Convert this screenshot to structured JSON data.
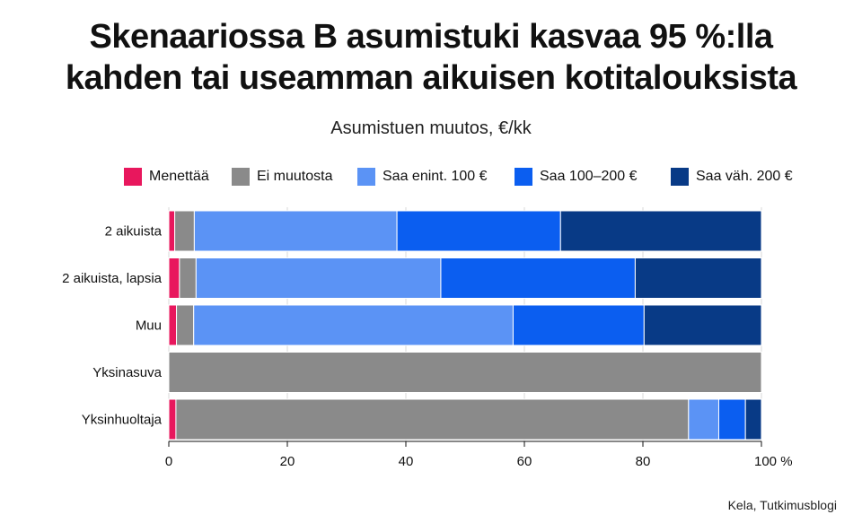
{
  "title_line1": "Skenaariossa B asumistuki kasvaa 95 %:lla",
  "title_line2": "kahden tai useamman aikuisen kotitalouksista",
  "source": "Kela, Tutkimusblogi",
  "chart_data": {
    "type": "bar",
    "orientation": "horizontal",
    "stacked": true,
    "title": "Skenaariossa B asumistuki kasvaa 95 %:lla kahden tai useamman aikuisen kotitalouksista",
    "subtitle": "Asumistuen muutos, €/kk",
    "xlabel": "",
    "ylabel": "",
    "xlim": [
      0,
      100
    ],
    "x_ticks": [
      "0",
      "20",
      "40",
      "60",
      "80",
      "100 %"
    ],
    "categories": [
      "2 aikuista",
      "2 aikuista, lapsia",
      "Muu",
      "Yksinasuva",
      "Yksinhuoltaja"
    ],
    "series": [
      {
        "name": "Menettää",
        "color": "#e8175d",
        "values": [
          1.0,
          1.8,
          1.3,
          0.0,
          1.2
        ]
      },
      {
        "name": "Ei muutosta",
        "color": "#8a8a8a",
        "values": [
          3.3,
          2.8,
          2.9,
          100.0,
          86.5
        ]
      },
      {
        "name": "Saa enint. 100 €",
        "color": "#5b93f5",
        "values": [
          34.2,
          41.3,
          53.9,
          0.0,
          5.1
        ]
      },
      {
        "name": "Saa 100–200 €",
        "color": "#0b5ef0",
        "values": [
          27.6,
          32.8,
          22.1,
          0.0,
          4.5
        ]
      },
      {
        "name": "Saa väh. 200 €",
        "color": "#083a86",
        "values": [
          33.9,
          21.3,
          19.8,
          0.0,
          2.7
        ]
      }
    ],
    "grid": true,
    "legend_position": "top"
  }
}
